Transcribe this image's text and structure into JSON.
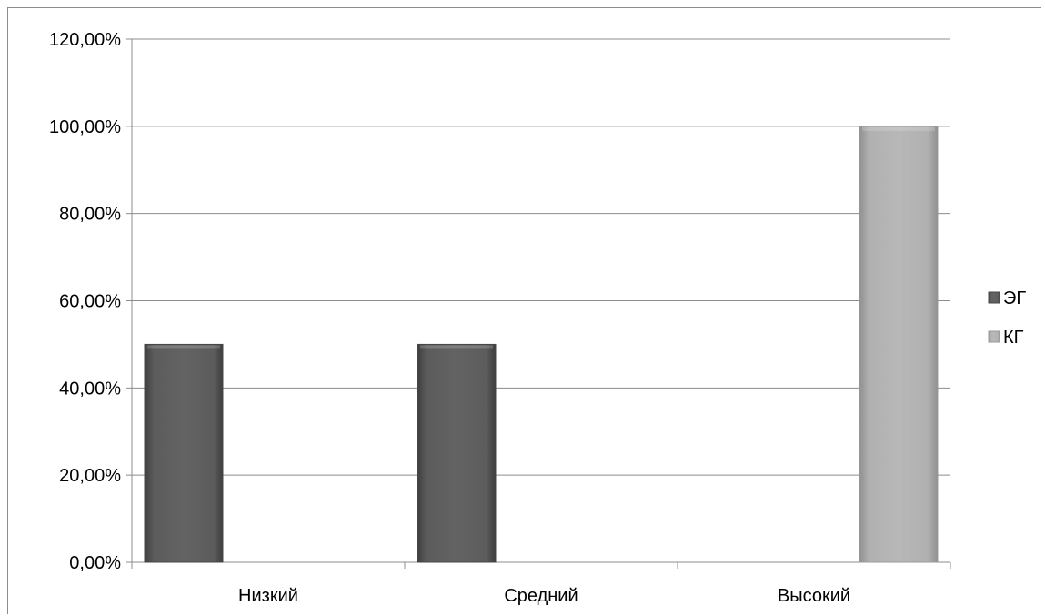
{
  "chart_data": {
    "type": "bar",
    "categories": [
      "Низкий",
      "Средний",
      "Высокий"
    ],
    "series": [
      {
        "name": "ЭГ",
        "values": [
          50,
          50,
          0
        ],
        "color": "#5a5a5a"
      },
      {
        "name": "КГ",
        "values": [
          0,
          0,
          100
        ],
        "color": "#b4b4b4"
      }
    ],
    "ylim": [
      0,
      120
    ],
    "yticks": [
      0,
      20,
      40,
      60,
      80,
      100,
      120
    ],
    "ytick_labels": [
      "0,00%",
      "20,00%",
      "40,00%",
      "60,00%",
      "80,00%",
      "100,00%",
      "120,00%"
    ],
    "grid": true,
    "legend_position": "right",
    "title": "",
    "xlabel": "",
    "ylabel": ""
  }
}
